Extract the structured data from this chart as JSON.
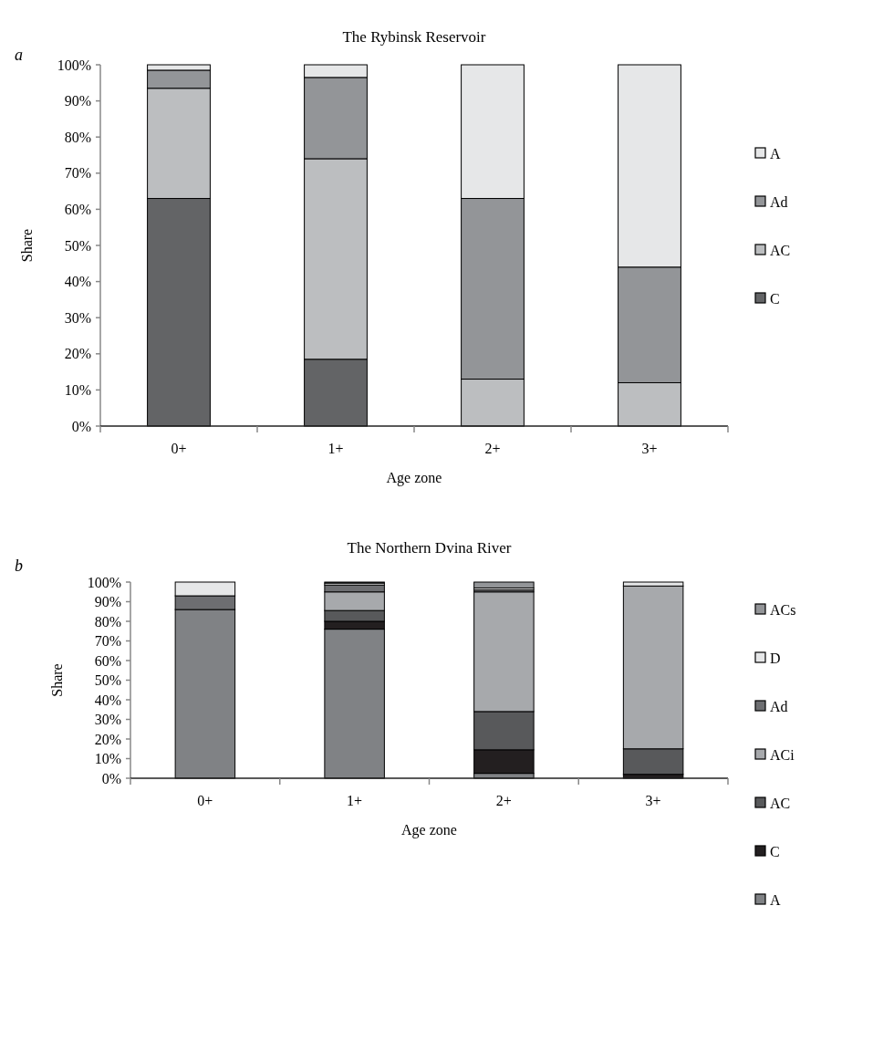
{
  "chart_data": [
    {
      "type": "bar",
      "title": "The Rybinsk Reservoir",
      "xlabel": "Age zone",
      "ylabel": "Share",
      "annotations": [
        "a"
      ],
      "stacked": true,
      "legend": "right",
      "grid": false,
      "categories": [
        "0+",
        "1+",
        "2+",
        "3+"
      ],
      "ylim": [
        0,
        100
      ],
      "yticks": [
        {
          "value": 0,
          "label": "0%"
        },
        {
          "value": 10,
          "label": "10%"
        },
        {
          "value": 20,
          "label": "20%"
        },
        {
          "value": 30,
          "label": "30%"
        },
        {
          "value": 40,
          "label": "40%"
        },
        {
          "value": 50,
          "label": "50%"
        },
        {
          "value": 60,
          "label": "60%"
        },
        {
          "value": 70,
          "label": "70%"
        },
        {
          "value": 80,
          "label": "80%"
        },
        {
          "value": 90,
          "label": "90%"
        },
        {
          "value": 100,
          "label": "100%"
        }
      ],
      "series": [
        {
          "name": "C",
          "color": "#636466",
          "values": [
            63,
            18.5,
            0,
            0
          ]
        },
        {
          "name": "AC",
          "color": "#bcbec0",
          "values": [
            30.5,
            55.5,
            13,
            12
          ]
        },
        {
          "name": "Ad",
          "color": "#939598",
          "values": [
            5,
            22.5,
            50,
            32
          ]
        },
        {
          "name": "A",
          "color": "#e6e7e8",
          "values": [
            1.5,
            3.5,
            37,
            56
          ]
        }
      ]
    },
    {
      "type": "bar",
      "title": "The Northern Dvina River",
      "xlabel": "Age zone",
      "ylabel": "Share",
      "annotations": [
        "b"
      ],
      "stacked": true,
      "legend": "right",
      "grid": false,
      "categories": [
        "0+",
        "1+",
        "2+",
        "3+"
      ],
      "ylim": [
        0,
        100
      ],
      "yticks": [
        {
          "value": 0,
          "label": "0%"
        },
        {
          "value": 10,
          "label": "10%"
        },
        {
          "value": 20,
          "label": "20%"
        },
        {
          "value": 30,
          "label": "30%"
        },
        {
          "value": 40,
          "label": "40%"
        },
        {
          "value": 50,
          "label": "50%"
        },
        {
          "value": 60,
          "label": "60%"
        },
        {
          "value": 70,
          "label": "70%"
        },
        {
          "value": 80,
          "label": "80%"
        },
        {
          "value": 90,
          "label": "90%"
        },
        {
          "value": 100,
          "label": "100%"
        }
      ],
      "series": [
        {
          "name": "A",
          "color": "#808285",
          "values": [
            86,
            76,
            2.5,
            0
          ]
        },
        {
          "name": "C",
          "color": "#231f20",
          "values": [
            0,
            4,
            12,
            2
          ]
        },
        {
          "name": "AC",
          "color": "#58595b",
          "values": [
            0,
            5.5,
            19.5,
            13
          ]
        },
        {
          "name": "ACi",
          "color": "#a7a9ac",
          "values": [
            0,
            9.5,
            61,
            83
          ]
        },
        {
          "name": "Ad",
          "color": "#6d6e71",
          "values": [
            7,
            3.5,
            1,
            0
          ]
        },
        {
          "name": "D",
          "color": "#e6e7e8",
          "values": [
            7,
            1,
            1,
            2
          ]
        },
        {
          "name": "ACs",
          "color": "#939598",
          "values": [
            0,
            0.5,
            3,
            0
          ]
        }
      ]
    }
  ]
}
